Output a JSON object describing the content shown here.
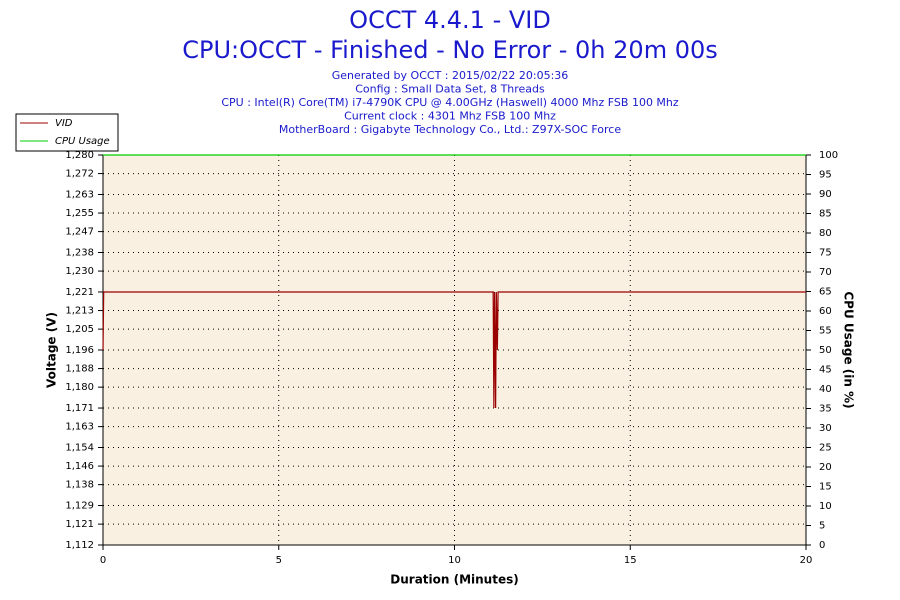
{
  "chart_data": {
    "type": "line",
    "title": "OCCT 4.4.1 - VID",
    "subtitle": "CPU:OCCT - Finished - No Error - 0h 20m 00s",
    "info": [
      "Generated by OCCT : 2015/02/22 20:05:36",
      "Config : Small Data Set, 8 Threads",
      "CPU : Intel(R) Core(TM) i7-4790K CPU @ 4.00GHz (Haswell) 4000 Mhz FSB 100 Mhz",
      "Current clock : 4301 Mhz FSB 100 Mhz",
      "MotherBoard : Gigabyte Technology Co., Ltd.: Z97X-SOC Force"
    ],
    "xlabel": "Duration (Minutes)",
    "ylabel": "Voltage (V)",
    "y2label": "CPU Usage (in %)",
    "x": [
      0,
      0.02,
      11.1,
      11.12,
      11.14,
      11.17,
      11.19,
      11.22,
      11.24,
      11.26,
      20
    ],
    "series": [
      {
        "name": "VID",
        "color": "#990000",
        "values": [
          1.196,
          1.221,
          1.221,
          1.171,
          1.221,
          1.171,
          1.221,
          1.196,
          1.221,
          1.221,
          1.221
        ]
      },
      {
        "name": "CPU Usage",
        "color": "#00cc00",
        "axis": "y2",
        "values": [
          100,
          100,
          100,
          100,
          100,
          100,
          100,
          100,
          100,
          100,
          100
        ]
      }
    ],
    "xlim": [
      0,
      20
    ],
    "xticks": [
      0,
      5,
      10,
      15,
      20
    ],
    "ylim": [
      1.112,
      1.28
    ],
    "yticks": [
      {
        "value": 1.112,
        "label": "1,112"
      },
      {
        "value": 1.121,
        "label": "1,121"
      },
      {
        "value": 1.129,
        "label": "1,129"
      },
      {
        "value": 1.138,
        "label": "1,138"
      },
      {
        "value": 1.146,
        "label": "1,146"
      },
      {
        "value": 1.154,
        "label": "1,154"
      },
      {
        "value": 1.163,
        "label": "1,163"
      },
      {
        "value": 1.171,
        "label": "1,171"
      },
      {
        "value": 1.18,
        "label": "1,180"
      },
      {
        "value": 1.188,
        "label": "1,188"
      },
      {
        "value": 1.196,
        "label": "1,196"
      },
      {
        "value": 1.205,
        "label": "1,205"
      },
      {
        "value": 1.213,
        "label": "1,213"
      },
      {
        "value": 1.221,
        "label": "1,221"
      },
      {
        "value": 1.23,
        "label": "1,230"
      },
      {
        "value": 1.238,
        "label": "1,238"
      },
      {
        "value": 1.247,
        "label": "1,247"
      },
      {
        "value": 1.255,
        "label": "1,255"
      },
      {
        "value": 1.263,
        "label": "1,263"
      },
      {
        "value": 1.272,
        "label": "1,272"
      },
      {
        "value": 1.28,
        "label": "1,280"
      }
    ],
    "y2lim": [
      0,
      100
    ],
    "y2ticks": [
      0,
      5,
      10,
      15,
      20,
      25,
      30,
      35,
      40,
      45,
      50,
      55,
      60,
      65,
      70,
      75,
      80,
      85,
      90,
      95,
      100
    ],
    "grid": true
  }
}
